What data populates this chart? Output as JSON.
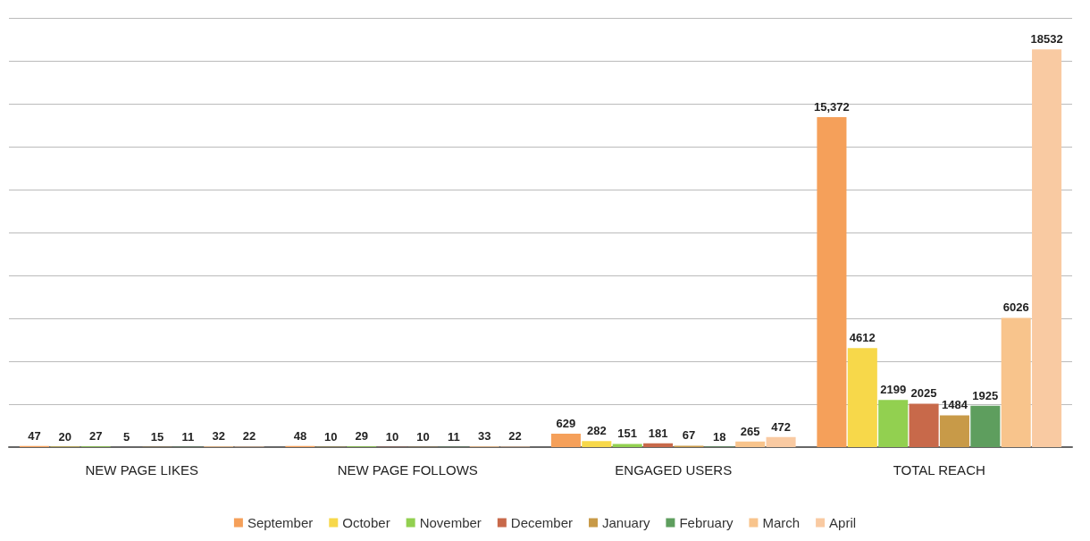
{
  "chart_data": {
    "type": "bar",
    "categories": [
      "NEW PAGE LIKES",
      "NEW PAGE FOLLOWS",
      "ENGAGED USERS",
      "TOTAL REACH"
    ],
    "series": [
      {
        "name": "September",
        "color": "#f5a05a",
        "values": [
          47,
          48,
          629,
          15372
        ],
        "value_labels": [
          "47",
          "48",
          "629",
          "15,372"
        ]
      },
      {
        "name": "October",
        "color": "#f7d84a",
        "values": [
          20,
          10,
          282,
          4612
        ],
        "value_labels": [
          "20",
          "10",
          "282",
          "4612"
        ]
      },
      {
        "name": "November",
        "color": "#92d050",
        "values": [
          27,
          29,
          151,
          2199
        ],
        "value_labels": [
          "27",
          "29",
          "151",
          "2199"
        ]
      },
      {
        "name": "December",
        "color": "#c8694a",
        "values": [
          5,
          10,
          181,
          2025
        ],
        "value_labels": [
          "5",
          "10",
          "181",
          "2025"
        ]
      },
      {
        "name": "January",
        "color": "#c89a48",
        "values": [
          15,
          10,
          67,
          1484
        ],
        "value_labels": [
          "15",
          "10",
          "67",
          "1484"
        ]
      },
      {
        "name": "February",
        "color": "#5e9e5e",
        "values": [
          11,
          11,
          18,
          1925
        ],
        "value_labels": [
          "11",
          "11",
          "18",
          "1925"
        ]
      },
      {
        "name": "March",
        "color": "#f8c48c",
        "values": [
          32,
          33,
          265,
          6026
        ],
        "value_labels": [
          "32",
          "33",
          "265",
          "6026"
        ]
      },
      {
        "name": "April",
        "color": "#f9caa2",
        "values": [
          22,
          22,
          472,
          18532
        ],
        "value_labels": [
          "22",
          "22",
          "472",
          "18532"
        ]
      }
    ],
    "ylim": [
      0,
      20000
    ],
    "yticks": [
      0,
      {
        "value": 2000,
        "label": null
      },
      {
        "value": 4000,
        "label": null
      },
      {
        "value": 6000,
        "label": null
      },
      {
        "value": 8000,
        "label": null
      },
      {
        "value": 10000,
        "label": null
      },
      {
        "value": 12000,
        "label": null
      },
      {
        "value": 14000,
        "label": null
      },
      {
        "value": 16000,
        "label": null
      },
      {
        "value": 18000,
        "label": null
      },
      {
        "value": 20000,
        "label": null
      }
    ],
    "tick_labels": "x",
    "grid": "y",
    "legend": "bottom"
  }
}
